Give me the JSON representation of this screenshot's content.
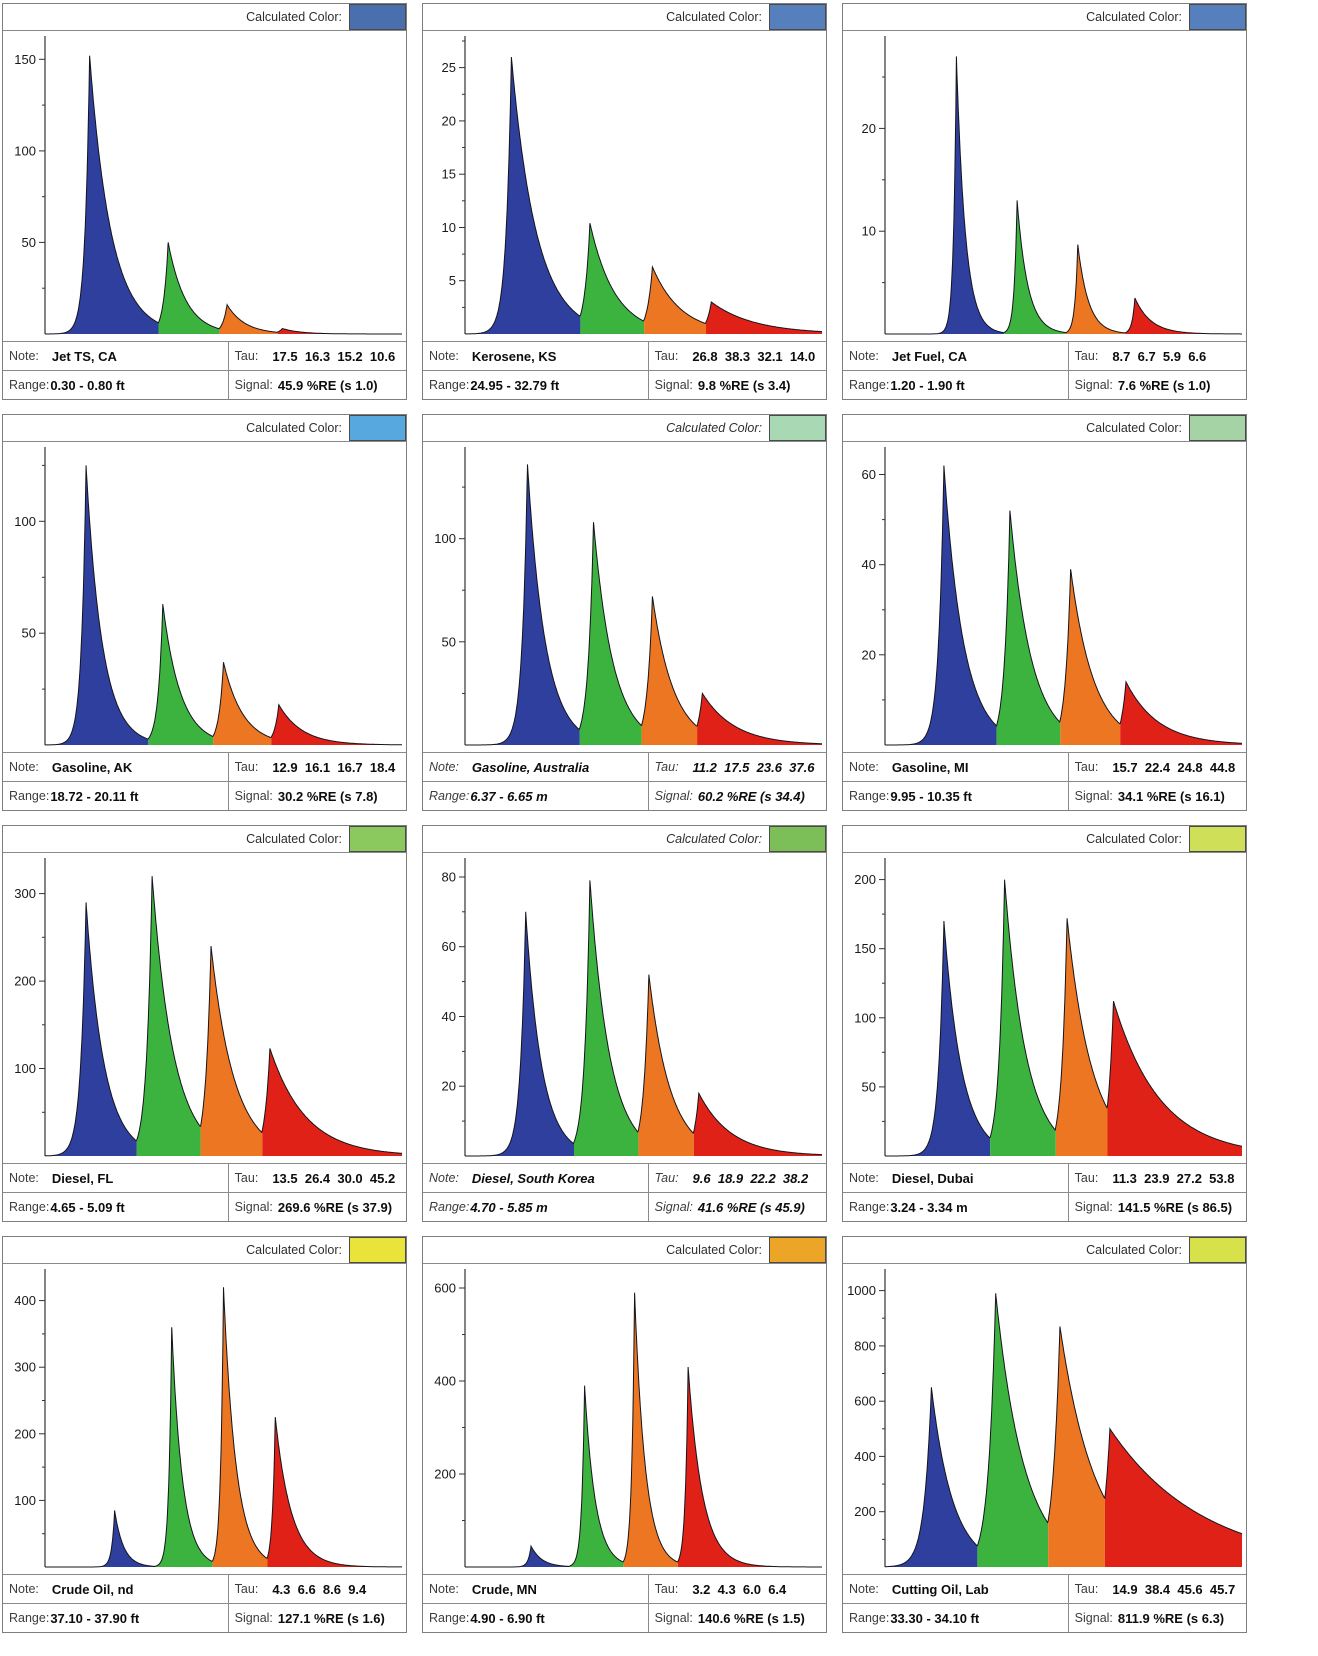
{
  "labels": {
    "calculated_color": "Calculated Color:",
    "note": "Note:",
    "tau": "Tau:",
    "range": "Range:",
    "signal": "Signal:"
  },
  "colors": {
    "peak_blue": "#2f3f9e",
    "peak_green": "#3db33f",
    "peak_orange": "#ec7621",
    "peak_red": "#df2117",
    "outline": "#14141c",
    "panel_border": "#7e7e7e"
  },
  "chart_data": [
    {
      "type": "area",
      "note": "Jet TS, CA",
      "tau_values": [
        "17.5",
        "16.3",
        "15.2",
        "10.6"
      ],
      "range": "0.30 - 0.80 ft",
      "signal": "45.9 %RE (s 1.0)",
      "calculated_color": "#4a6fae",
      "italic": false,
      "ylim": [
        0,
        160
      ],
      "yticks": [
        50,
        100,
        150
      ],
      "peaks": {
        "x": [
          0.125,
          0.345,
          0.51,
          0.665
        ],
        "h": [
          152,
          50,
          16,
          3
        ],
        "d": [
          0.06,
          0.05,
          0.05,
          0.05
        ]
      },
      "rise": 0.013
    },
    {
      "type": "area",
      "note": "Kerosene, KS",
      "tau_values": [
        "26.8",
        "38.3",
        "32.1",
        "14.0"
      ],
      "range": "24.95 - 32.79 ft",
      "signal": "9.8 %RE (s 3.4)",
      "calculated_color": "#5580bd",
      "italic": false,
      "ylim": [
        0,
        27.5
      ],
      "yticks": [
        5,
        10,
        15,
        20,
        25
      ],
      "peaks": {
        "x": [
          0.13,
          0.35,
          0.525,
          0.69
        ],
        "h": [
          26,
          10.4,
          6.3,
          3.0
        ],
        "d": [
          0.07,
          0.07,
          0.08,
          0.12
        ]
      },
      "rise": 0.015
    },
    {
      "type": "area",
      "note": "Jet Fuel, CA",
      "tau_values": [
        "8.7",
        "6.7",
        "5.9",
        "6.6"
      ],
      "range": "1.20 - 1.90 ft",
      "signal": "7.6 %RE (s 1.0)",
      "calculated_color": "#5580bd",
      "italic": false,
      "ylim": [
        0,
        28.5
      ],
      "yticks": [
        10,
        20
      ],
      "peaks": {
        "x": [
          0.2,
          0.37,
          0.54,
          0.7
        ],
        "h": [
          27,
          13,
          8.7,
          3.5
        ],
        "d": [
          0.025,
          0.03,
          0.03,
          0.045
        ]
      },
      "rise": 0.008
    },
    {
      "type": "area",
      "note": "Gasoline, AK",
      "tau_values": [
        "12.9",
        "16.1",
        "16.7",
        "18.4"
      ],
      "range": "18.72 - 20.11 ft",
      "signal": "30.2 %RE (s 7.8)",
      "calculated_color": "#58a8e0",
      "italic": false,
      "ylim": [
        0,
        131
      ],
      "yticks": [
        50,
        100
      ],
      "peaks": {
        "x": [
          0.115,
          0.33,
          0.5,
          0.655
        ],
        "h": [
          125,
          63,
          37,
          18
        ],
        "d": [
          0.045,
          0.05,
          0.055,
          0.065
        ]
      },
      "rise": 0.013
    },
    {
      "type": "area",
      "note": "Gasoline, Australia",
      "tau_values": [
        "11.2",
        "17.5",
        "23.6",
        "37.6"
      ],
      "range": "6.37 - 6.65 m",
      "signal": "60.2 %RE (s 34.4)",
      "calculated_color": "#a9d9b4",
      "italic": true,
      "ylim": [
        0,
        142
      ],
      "yticks": [
        50,
        100
      ],
      "peaks": {
        "x": [
          0.175,
          0.36,
          0.525,
          0.665
        ],
        "h": [
          136,
          108,
          72,
          25
        ],
        "d": [
          0.05,
          0.055,
          0.06,
          0.09
        ]
      },
      "rise": 0.015
    },
    {
      "type": "area",
      "note": "Gasoline, MI",
      "tau_values": [
        "15.7",
        "22.4",
        "24.8",
        "44.8"
      ],
      "range": "9.95 - 10.35 ft",
      "signal": "34.1 %RE (s 16.1)",
      "calculated_color": "#a5d3a6",
      "italic": false,
      "ylim": [
        0,
        65
      ],
      "yticks": [
        20,
        40,
        60
      ],
      "peaks": {
        "x": [
          0.165,
          0.35,
          0.52,
          0.675
        ],
        "h": [
          62,
          52,
          39,
          14
        ],
        "d": [
          0.055,
          0.06,
          0.065,
          0.09
        ]
      },
      "rise": 0.015
    },
    {
      "type": "area",
      "note": "Diesel, FL",
      "tau_values": [
        "13.5",
        "26.4",
        "30.0",
        "45.2"
      ],
      "range": "4.65 - 5.09 ft",
      "signal": "269.6 %RE (s 37.9)",
      "calculated_color": "#8bc95e",
      "italic": false,
      "ylim": [
        0,
        335
      ],
      "yticks": [
        100,
        200,
        300
      ],
      "peaks": {
        "x": [
          0.115,
          0.3,
          0.465,
          0.63
        ],
        "h": [
          290,
          320,
          240,
          123
        ],
        "d": [
          0.05,
          0.06,
          0.065,
          0.1
        ]
      },
      "rise": 0.015
    },
    {
      "type": "area",
      "note": "Diesel, South Korea",
      "tau_values": [
        "9.6",
        "18.9",
        "22.2",
        "38.2"
      ],
      "range": "4.70 - 5.85 m",
      "signal": "41.6 %RE (s 45.9)",
      "calculated_color": "#7cbf58",
      "italic": true,
      "ylim": [
        0,
        84
      ],
      "yticks": [
        20,
        40,
        60,
        80
      ],
      "peaks": {
        "x": [
          0.17,
          0.35,
          0.515,
          0.655
        ],
        "h": [
          70,
          79,
          52,
          18
        ],
        "d": [
          0.045,
          0.055,
          0.06,
          0.09
        ]
      },
      "rise": 0.015
    },
    {
      "type": "area",
      "note": "Diesel, Dubai",
      "tau_values": [
        "11.3",
        "23.9",
        "27.2",
        "53.8"
      ],
      "range": "3.24 - 3.34 m",
      "signal": "141.5 %RE (s 86.5)",
      "calculated_color": "#cfdf58",
      "italic": false,
      "ylim": [
        0,
        212
      ],
      "yticks": [
        50,
        100,
        150,
        200
      ],
      "peaks": {
        "x": [
          0.165,
          0.335,
          0.51,
          0.64
        ],
        "h": [
          170,
          200,
          172,
          112
        ],
        "d": [
          0.05,
          0.06,
          0.07,
          0.13
        ]
      },
      "rise": 0.015
    },
    {
      "type": "area",
      "note": "Crude Oil, nd",
      "tau_values": [
        "4.3",
        "6.6",
        "8.6",
        "9.4"
      ],
      "range": "37.10 - 37.90 ft",
      "signal": "127.1 %RE (s 1.6)",
      "calculated_color": "#e9e33a",
      "italic": false,
      "ylim": [
        0,
        440
      ],
      "yticks": [
        100,
        200,
        300,
        400
      ],
      "peaks": {
        "x": [
          0.195,
          0.355,
          0.5,
          0.645
        ],
        "h": [
          85,
          360,
          420,
          225
        ],
        "d": [
          0.025,
          0.03,
          0.035,
          0.045
        ]
      },
      "rise": 0.008
    },
    {
      "type": "area",
      "note": "Crude, MN",
      "tau_values": [
        "3.2",
        "4.3",
        "6.0",
        "6.4"
      ],
      "range": "4.90 - 6.90 ft",
      "signal": "140.6 %RE (s 1.5)",
      "calculated_color": "#eda528",
      "italic": false,
      "ylim": [
        0,
        630
      ],
      "yticks": [
        200,
        400,
        600
      ],
      "peaks": {
        "x": [
          0.185,
          0.335,
          0.475,
          0.625
        ],
        "h": [
          45,
          390,
          590,
          430
        ],
        "d": [
          0.03,
          0.03,
          0.03,
          0.04
        ]
      },
      "rise": 0.008
    },
    {
      "type": "area",
      "note": "Cutting Oil, Lab",
      "tau_values": [
        "14.9",
        "38.4",
        "45.6",
        "45.7"
      ],
      "range": "33.30 - 34.10 ft",
      "signal": "811.9 %RE (s 6.3)",
      "calculated_color": "#d7e14a",
      "italic": false,
      "ylim": [
        0,
        1060
      ],
      "yticks": [
        200,
        400,
        600,
        800,
        1000
      ],
      "peaks": {
        "x": [
          0.13,
          0.31,
          0.49,
          0.63
        ],
        "h": [
          650,
          990,
          870,
          500
        ],
        "d": [
          0.06,
          0.08,
          0.1,
          0.26
        ]
      },
      "rise": 0.02
    }
  ]
}
